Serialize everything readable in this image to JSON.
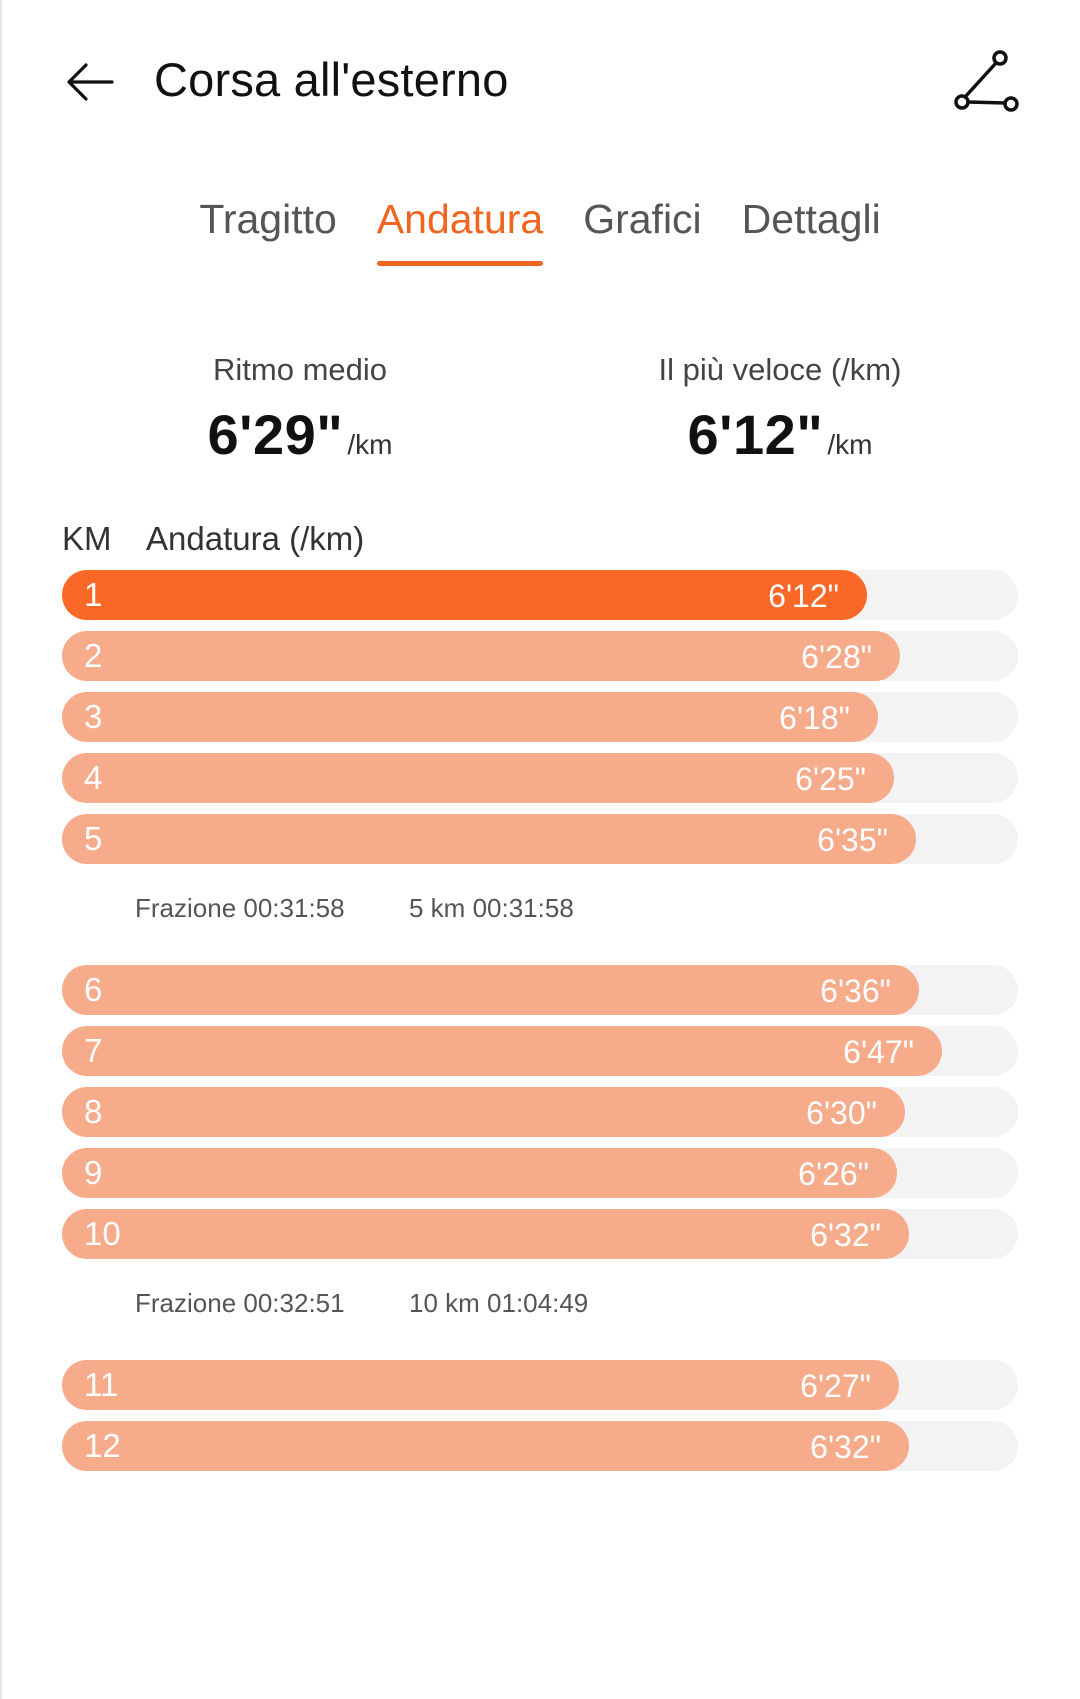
{
  "header": {
    "title": "Corsa all'esterno",
    "back_icon": "back-arrow-icon",
    "route_icon": "route-icon"
  },
  "tabs": [
    {
      "label": "Tragitto",
      "active": false
    },
    {
      "label": "Andatura",
      "active": true
    },
    {
      "label": "Grafici",
      "active": false
    },
    {
      "label": "Dettagli",
      "active": false
    }
  ],
  "summary": {
    "avg": {
      "label": "Ritmo medio",
      "value": "6'29\"",
      "unit": "/km"
    },
    "fastest": {
      "label": "Il più veloce (/km)",
      "value": "6'12\"",
      "unit": "/km"
    }
  },
  "table": {
    "col_km": "KM",
    "col_pace": "Andatura (/km)"
  },
  "rows": [
    {
      "km": "1",
      "pace": "6'12\"",
      "fill": 0.842,
      "best": true
    },
    {
      "km": "2",
      "pace": "6'28\"",
      "fill": 0.877
    },
    {
      "km": "3",
      "pace": "6'18\"",
      "fill": 0.854
    },
    {
      "km": "4",
      "pace": "6'25\"",
      "fill": 0.87
    },
    {
      "km": "5",
      "pace": "6'35\"",
      "fill": 0.893
    },
    {
      "split": true,
      "frazione": "Frazione 00:31:58",
      "cumulative": "5 km 00:31:58"
    },
    {
      "km": "6",
      "pace": "6'36\"",
      "fill": 0.896
    },
    {
      "km": "7",
      "pace": "6'47\"",
      "fill": 0.92
    },
    {
      "km": "8",
      "pace": "6'30\"",
      "fill": 0.882
    },
    {
      "km": "9",
      "pace": "6'26\"",
      "fill": 0.873
    },
    {
      "km": "10",
      "pace": "6'32\"",
      "fill": 0.886
    },
    {
      "split": true,
      "frazione": "Frazione 00:32:51",
      "cumulative": "10 km 01:04:49"
    },
    {
      "km": "11",
      "pace": "6'27\"",
      "fill": 0.875
    },
    {
      "km": "12",
      "pace": "6'32\"",
      "fill": 0.886
    }
  ],
  "colors": {
    "accent": "#f0651f",
    "best_bar": "#f96826",
    "bar": "#f6ab8b",
    "track": "#f3f3f3"
  }
}
